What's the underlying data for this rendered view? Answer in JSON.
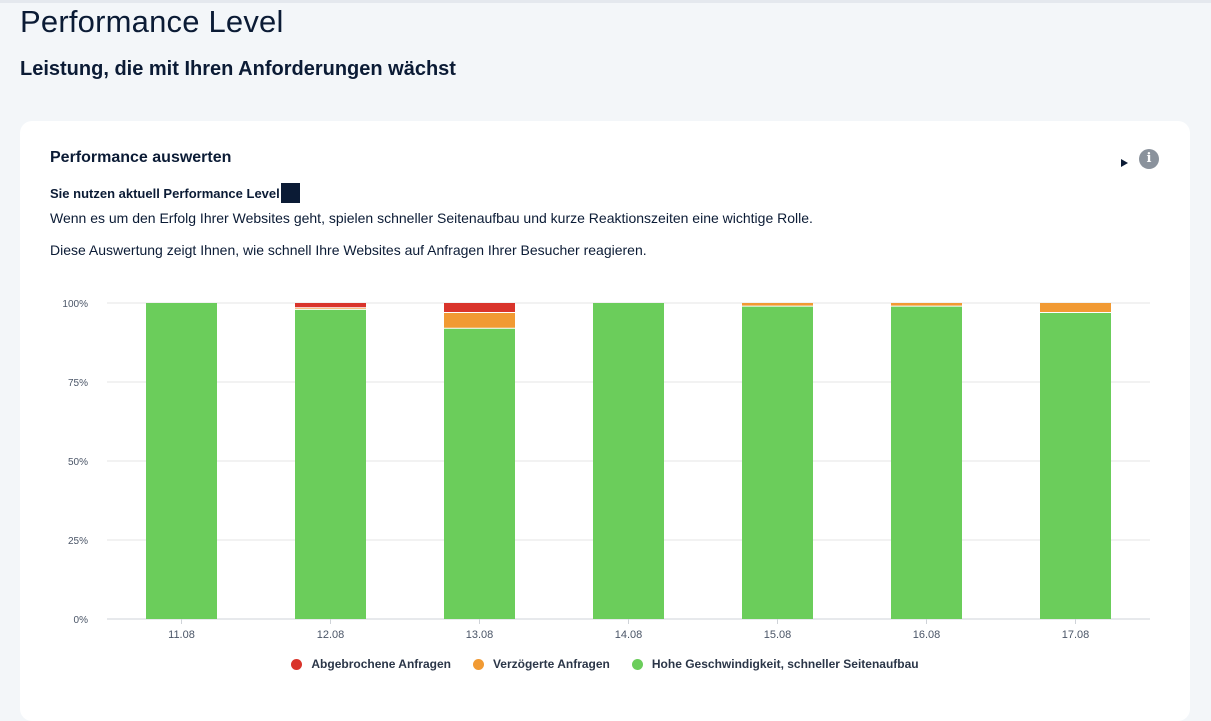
{
  "page": {
    "title": "Performance Level",
    "subtitle": "Leistung, die mit Ihren Anforderungen wächst"
  },
  "card": {
    "title": "Performance auswerten",
    "level_label": "Sie nutzen aktuell Performance Level",
    "level_value": "",
    "description_1": "Wenn es um den Erfolg Ihrer Websites geht, spielen schneller Seitenaufbau und kurze Reaktionszeiten eine wichtige Rolle.",
    "description_2": "Diese Auswertung zeigt Ihnen, wie schnell Ihre Websites auf Anfragen Ihrer Besucher reagieren.",
    "info_icon": "info-icon",
    "play_icon": "play-triangle-icon"
  },
  "colors": {
    "aborted": "#d9342b",
    "delayed": "#f19a33",
    "fast": "#6bcd5b",
    "grid": "#e6e6e6"
  },
  "chart_data": {
    "type": "bar",
    "stacked": true,
    "categories": [
      "11.08",
      "12.08",
      "13.08",
      "14.08",
      "15.08",
      "16.08",
      "17.08"
    ],
    "series": [
      {
        "name": "Hohe Geschwindigkeit, schneller Seitenaufbau",
        "color": "#6bcd5b",
        "values": [
          100,
          98,
          92,
          100,
          99,
          99,
          97
        ]
      },
      {
        "name": "Verzögerte Anfragen",
        "color": "#f19a33",
        "values": [
          0,
          0.5,
          5,
          0,
          1,
          1,
          3
        ]
      },
      {
        "name": "Abgebrochene Anfragen",
        "color": "#d9342b",
        "values": [
          0,
          1.5,
          3,
          0,
          0,
          0,
          0
        ]
      }
    ],
    "legend_order": [
      "Abgebrochene Anfragen",
      "Verzögerte Anfragen",
      "Hohe Geschwindigkeit, schneller Seitenaufbau"
    ],
    "y_ticks": [
      "0%",
      "25%",
      "50%",
      "75%",
      "100%"
    ],
    "ylim": [
      0,
      100
    ],
    "grid": true,
    "legend_position": "bottom"
  }
}
